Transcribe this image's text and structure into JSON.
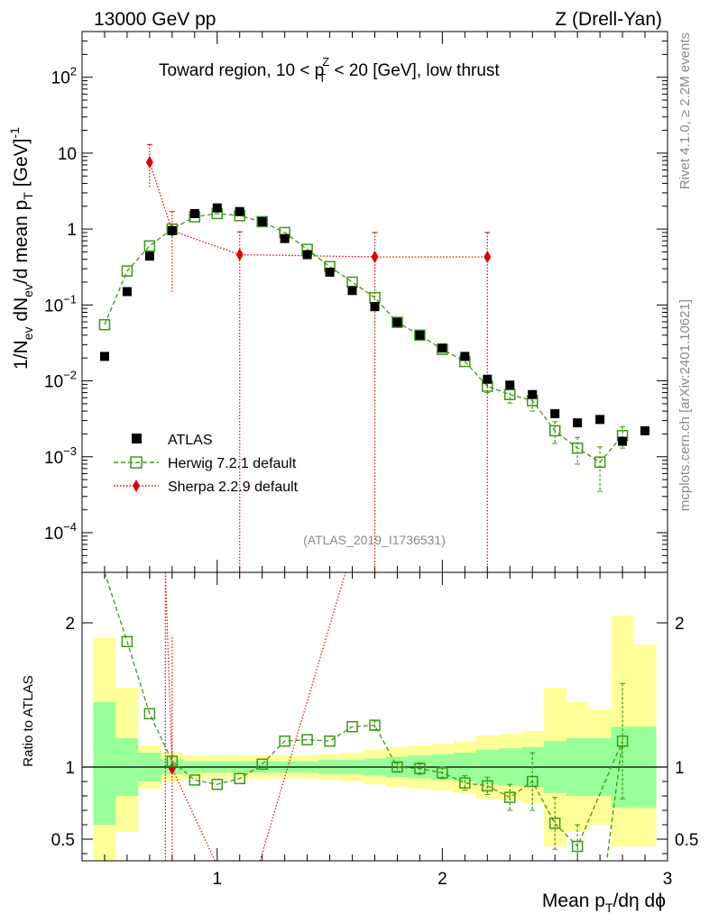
{
  "header": {
    "left": "13000 GeV pp",
    "right": "Z (Drell-Yan)"
  },
  "side_labels": {
    "rivet": "Rivet 4.1.0, ≥ 2.2M events",
    "mcplots": "mcplots.cern.ch [arXiv:2401.10621]"
  },
  "colors": {
    "atlas": "#000000",
    "herwig": "#3a9a12",
    "sherpa": "#e00000",
    "band_inner": "#99ff99",
    "band_outer": "#ffff99"
  },
  "chart_data": [
    {
      "type": "scatter",
      "panel": "main",
      "title": "Toward region, 10 < p_T^Z < 20 [GeV], low thrust",
      "title_parts": {
        "pre": "Toward region, 10 < p",
        "sub": "T",
        "sup": "Z",
        "post": " < 20 [GeV], low thrust"
      },
      "ylabel": "1/N_ev dN_ev/d mean p_T [GeV]^-1",
      "ylabel_parts": {
        "a": "1/N",
        "b": "ev",
        "c": " dN",
        "d": "ev",
        "e": "/d mean p",
        "f": "T",
        "g": " [GeV]",
        "h": "-1"
      },
      "yscale": "log",
      "ylim": [
        3e-05,
        400
      ],
      "xlim": [
        0.4,
        3.0
      ],
      "ytick_labels": [
        {
          "v": 0.0001,
          "m": "10",
          "e": "−4"
        },
        {
          "v": 0.001,
          "m": "10",
          "e": "−3"
        },
        {
          "v": 0.01,
          "m": "10",
          "e": "−2"
        },
        {
          "v": 0.1,
          "m": "10",
          "e": "−1"
        },
        {
          "v": 1,
          "m": "1",
          "e": ""
        },
        {
          "v": 10,
          "m": "10",
          "e": ""
        },
        {
          "v": 100,
          "m": "10",
          "e": "2"
        }
      ],
      "watermark": "(ATLAS_2019_I1736531)",
      "legend_position": "lower-left",
      "series": [
        {
          "name": "ATLAS",
          "marker": "square-filled",
          "x": [
            0.5,
            0.6,
            0.7,
            0.8,
            0.9,
            1.0,
            1.1,
            1.2,
            1.3,
            1.4,
            1.5,
            1.6,
            1.7,
            1.8,
            1.9,
            2.0,
            2.1,
            2.2,
            2.3,
            2.4,
            2.5,
            2.6,
            2.7,
            2.8,
            2.9
          ],
          "y": [
            0.021,
            0.15,
            0.44,
            0.95,
            1.6,
            1.9,
            1.7,
            1.25,
            0.75,
            0.46,
            0.27,
            0.155,
            0.095,
            0.059,
            0.04,
            0.027,
            0.021,
            0.0105,
            0.0088,
            0.0066,
            0.0037,
            0.0028,
            0.0031,
            0.0016,
            0.0022
          ]
        },
        {
          "name": "Herwig 7.2.1 default",
          "marker": "square-open",
          "line": "dashed",
          "x": [
            0.5,
            0.6,
            0.7,
            0.8,
            0.9,
            1.0,
            1.1,
            1.2,
            1.3,
            1.4,
            1.5,
            1.6,
            1.7,
            1.8,
            1.9,
            2.0,
            2.1,
            2.2,
            2.3,
            2.4,
            2.5,
            2.6,
            2.7,
            2.8
          ],
          "y": [
            0.055,
            0.28,
            0.6,
            1.0,
            1.45,
            1.6,
            1.5,
            1.25,
            0.9,
            0.54,
            0.32,
            0.2,
            0.125,
            0.059,
            0.04,
            0.026,
            0.018,
            0.0085,
            0.0066,
            0.0055,
            0.0022,
            0.0013,
            0.00085,
            0.0019
          ],
          "yerr": [
            0,
            0,
            0,
            0,
            0,
            0,
            0,
            0,
            0,
            0,
            0,
            0,
            0,
            0,
            0,
            0,
            0,
            0.0015,
            0.0015,
            0.0015,
            0.0007,
            0.0005,
            0.0005,
            0.0006
          ]
        },
        {
          "name": "Sherpa 2.2.9 default",
          "marker": "diamond",
          "line": "dotted",
          "x": [
            0.7,
            0.8,
            1.1,
            1.7,
            2.2
          ],
          "y": [
            7.6,
            0.95,
            0.46,
            0.43,
            0.43
          ],
          "yhi": [
            13,
            1.7,
            0.92,
            0.9,
            0.9
          ],
          "ylo": [
            3.5,
            0.15,
            3e-05,
            3e-05,
            3e-05
          ]
        }
      ]
    },
    {
      "type": "scatter",
      "panel": "ratio",
      "ylabel": "Ratio to ATLAS",
      "xlabel": "Mean p_T/dη dϕ",
      "xlabel_parts": {
        "a": "Mean p",
        "b": "T",
        "c": "/dη dϕ"
      },
      "ylim": [
        0.35,
        2.35
      ],
      "xlim": [
        0.4,
        3.0
      ],
      "yticks": [
        0.5,
        1,
        2
      ],
      "ytick_labels": [
        "0.5",
        "1",
        "2"
      ],
      "xticks": [
        1,
        2,
        3
      ],
      "xtick_labels": [
        "1",
        "2",
        "3"
      ],
      "reference_line": 1,
      "bands": {
        "edges": [
          0.45,
          0.55,
          0.65,
          0.75,
          0.85,
          0.95,
          1.05,
          1.15,
          1.25,
          1.35,
          1.45,
          1.55,
          1.65,
          1.75,
          1.85,
          1.95,
          2.05,
          2.15,
          2.25,
          2.35,
          2.45,
          2.55,
          2.65,
          2.75,
          2.85,
          2.95
        ],
        "inner": [
          [
            0.6,
            1.45
          ],
          [
            0.8,
            1.2
          ],
          [
            0.9,
            1.1
          ],
          [
            0.95,
            1.05
          ],
          [
            0.96,
            1.04
          ],
          [
            0.96,
            1.04
          ],
          [
            0.96,
            1.04
          ],
          [
            0.96,
            1.04
          ],
          [
            0.96,
            1.04
          ],
          [
            0.96,
            1.04
          ],
          [
            0.95,
            1.05
          ],
          [
            0.95,
            1.05
          ],
          [
            0.94,
            1.06
          ],
          [
            0.93,
            1.07
          ],
          [
            0.92,
            1.08
          ],
          [
            0.91,
            1.09
          ],
          [
            0.9,
            1.1
          ],
          [
            0.88,
            1.12
          ],
          [
            0.87,
            1.13
          ],
          [
            0.86,
            1.14
          ],
          [
            0.82,
            1.18
          ],
          [
            0.8,
            1.2
          ],
          [
            0.8,
            1.2
          ],
          [
            0.72,
            1.28
          ],
          [
            0.72,
            1.28
          ]
        ],
        "outer": [
          [
            0.35,
            1.9
          ],
          [
            0.55,
            1.55
          ],
          [
            0.85,
            1.15
          ],
          [
            0.9,
            1.1
          ],
          [
            0.92,
            1.08
          ],
          [
            0.92,
            1.08
          ],
          [
            0.92,
            1.08
          ],
          [
            0.92,
            1.08
          ],
          [
            0.92,
            1.08
          ],
          [
            0.92,
            1.08
          ],
          [
            0.91,
            1.09
          ],
          [
            0.9,
            1.1
          ],
          [
            0.88,
            1.12
          ],
          [
            0.86,
            1.14
          ],
          [
            0.85,
            1.15
          ],
          [
            0.84,
            1.16
          ],
          [
            0.82,
            1.18
          ],
          [
            0.78,
            1.22
          ],
          [
            0.77,
            1.23
          ],
          [
            0.75,
            1.25
          ],
          [
            0.45,
            1.55
          ],
          [
            0.55,
            1.45
          ],
          [
            0.6,
            1.4
          ],
          [
            0.45,
            2.05
          ],
          [
            0.45,
            1.85
          ]
        ]
      },
      "series": [
        {
          "name": "Herwig 7.2.1 default",
          "marker": "square-open",
          "line": "dashed",
          "line_start": [
            0.5,
            2.37
          ],
          "line_end": [
            2.73,
            0.3
          ],
          "x": [
            0.6,
            0.7,
            0.8,
            0.9,
            1.0,
            1.1,
            1.2,
            1.3,
            1.4,
            1.5,
            1.6,
            1.7,
            1.8,
            1.9,
            2.0,
            2.1,
            2.2,
            2.3,
            2.4,
            2.5,
            2.6,
            2.8
          ],
          "y": [
            1.87,
            1.37,
            1.04,
            0.91,
            0.88,
            0.92,
            1.02,
            1.18,
            1.19,
            1.18,
            1.28,
            1.29,
            1.0,
            0.99,
            0.96,
            0.89,
            0.87,
            0.79,
            0.9,
            0.61,
            0.45,
            1.18
          ],
          "yerr": [
            0,
            0,
            0,
            0,
            0,
            0,
            0,
            0,
            0,
            0,
            0,
            0.03,
            0.03,
            0.04,
            0.04,
            0.05,
            0.06,
            0.09,
            0.2,
            0.18,
            0.15,
            0.4
          ]
        },
        {
          "name": "Sherpa 2.2.9 default",
          "marker": "diamond",
          "line": "dotted",
          "x": [
            0.8
          ],
          "y": [
            0.99
          ],
          "line_segments": [
            [
              [
                0.77,
                2.35
              ],
              [
                0.8,
                0.99
              ],
              [
                0.99,
                0.35
              ]
            ],
            [
              [
                1.19,
                0.35
              ],
              [
                1.57,
                2.35
              ]
            ]
          ],
          "vlines": [
            [
              0.77,
              0.35,
              2.35
            ],
            [
              0.8,
              0.35,
              1.9
            ]
          ]
        }
      ]
    }
  ]
}
